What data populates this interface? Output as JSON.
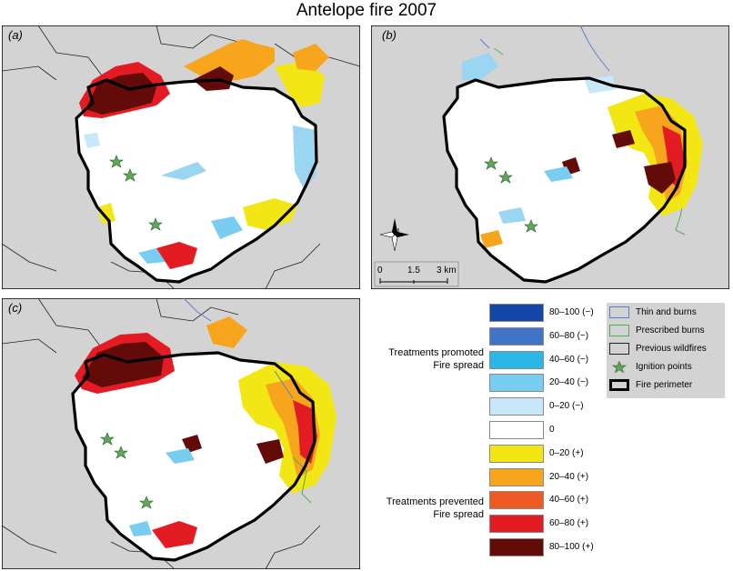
{
  "title": "Antelope fire 2007",
  "panels": {
    "a": "(a)",
    "b": "(b)",
    "c": "(c)"
  },
  "compass": {
    "north_label": "N"
  },
  "scale_bar": {
    "t0": "0",
    "t1": "1.5",
    "t2": "3 km"
  },
  "legend": {
    "promoted_label": "Treatments promoted Fire spread",
    "prevented_label": "Treatments prevented Fire spread",
    "classes": [
      {
        "label": "80–100 (−)",
        "color": "#1448a8"
      },
      {
        "label": "60–80 (−)",
        "color": "#3f74c6"
      },
      {
        "label": "40–60 (−)",
        "color": "#2bb6e8"
      },
      {
        "label": "20–40 (−)",
        "color": "#78cdf0"
      },
      {
        "label": "0–20 (−)",
        "color": "#c6e8f8"
      },
      {
        "label": "0",
        "color": "#ffffff"
      },
      {
        "label": "0–20 (+)",
        "color": "#f2e614"
      },
      {
        "label": "20–40 (+)",
        "color": "#f7a51c"
      },
      {
        "label": "40–60 (+)",
        "color": "#ef5a22"
      },
      {
        "label": "60–80 (+)",
        "color": "#e31c24"
      },
      {
        "label": "80–100 (+)",
        "color": "#630b08"
      }
    ]
  },
  "symbol_legend": {
    "thin_burns": "Thin and burns",
    "prescribed_burns": "Prescribed burns",
    "previous_wildfires": "Previous wildfires",
    "ignition_points": "Ignition points",
    "fire_perimeter": "Fire perimeter"
  },
  "colors": {
    "background": "#d3d3d3",
    "thin_burns": "#5d7ec4",
    "prescribed_burns": "#4caf50",
    "star": "#5fa85a"
  }
}
